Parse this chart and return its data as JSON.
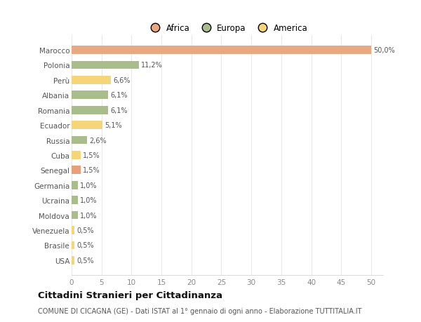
{
  "categories": [
    "Marocco",
    "Polonia",
    "Perù",
    "Albania",
    "Romania",
    "Ecuador",
    "Russia",
    "Cuba",
    "Senegal",
    "Germania",
    "Ucraina",
    "Moldova",
    "Venezuela",
    "Brasile",
    "USA"
  ],
  "values": [
    50.0,
    11.2,
    6.6,
    6.1,
    6.1,
    5.1,
    2.6,
    1.5,
    1.5,
    1.0,
    1.0,
    1.0,
    0.5,
    0.5,
    0.5
  ],
  "labels": [
    "50,0%",
    "11,2%",
    "6,6%",
    "6,1%",
    "6,1%",
    "5,1%",
    "2,6%",
    "1,5%",
    "1,5%",
    "1,0%",
    "1,0%",
    "1,0%",
    "0,5%",
    "0,5%",
    "0,5%"
  ],
  "colors": [
    "#E8A882",
    "#A8BC8C",
    "#F5D47A",
    "#A8BC8C",
    "#A8BC8C",
    "#F5D47A",
    "#A8BC8C",
    "#F5D47A",
    "#E8A07A",
    "#A8BC8C",
    "#A8BC8C",
    "#A8BC8C",
    "#F5D47A",
    "#F5D47A",
    "#F5D47A"
  ],
  "legend_labels": [
    "Africa",
    "Europa",
    "America"
  ],
  "legend_colors": [
    "#E8A882",
    "#A8BC8C",
    "#F5D47A"
  ],
  "title": "Cittadini Stranieri per Cittadinanza",
  "subtitle": "COMUNE DI CICAGNA (GE) - Dati ISTAT al 1° gennaio di ogni anno - Elaborazione TUTTITALIA.IT",
  "xlim": [
    0,
    52
  ],
  "xticks": [
    0,
    5,
    10,
    15,
    20,
    25,
    30,
    35,
    40,
    45,
    50
  ],
  "background_color": "#ffffff",
  "grid_color": "#e8e8e8"
}
